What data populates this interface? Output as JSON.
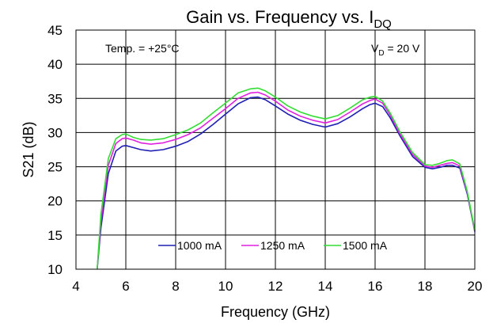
{
  "chart_data": {
    "type": "line",
    "title": {
      "main": "Gain vs. Frequency vs. I",
      "sub": "DQ"
    },
    "xlabel": "Frequency (GHz)",
    "ylabel": "S21 (dB)",
    "xlim": [
      4,
      20
    ],
    "ylim": [
      10,
      45
    ],
    "xticks": [
      "4",
      "6",
      "8",
      "10",
      "12",
      "14",
      "16",
      "18",
      "20"
    ],
    "yticks": [
      "10",
      "15",
      "20",
      "25",
      "30",
      "35",
      "40",
      "45"
    ],
    "grid": true,
    "legend_position": "bottom-center",
    "annotations": {
      "temp": "Temp. = +25°C",
      "vd_main": "V",
      "vd_sub": "D",
      "vd_rest": " = 20 V"
    },
    "series": [
      {
        "name": "1000 mA",
        "color": "#1f1fb4",
        "x": [
          4.85,
          5.0,
          5.3,
          5.6,
          5.85,
          6.0,
          6.3,
          6.6,
          7.0,
          7.5,
          8.0,
          8.5,
          9.0,
          9.5,
          10.0,
          10.5,
          11.0,
          11.3,
          11.6,
          12.0,
          12.5,
          13.0,
          13.5,
          14.0,
          14.5,
          15.0,
          15.5,
          15.8,
          16.0,
          16.3,
          16.6,
          17.0,
          17.5,
          18.0,
          18.3,
          18.6,
          18.9,
          19.1,
          19.4,
          19.7,
          20.0
        ],
        "values": [
          10,
          16,
          24,
          27.3,
          28,
          28.1,
          27.8,
          27.5,
          27.3,
          27.5,
          28,
          28.7,
          29.8,
          31.2,
          32.7,
          34.2,
          35.1,
          35.2,
          34.8,
          33.9,
          32.7,
          31.8,
          31.2,
          30.8,
          31.3,
          32.3,
          33.5,
          34.1,
          34.3,
          33.8,
          32.2,
          29.5,
          26.5,
          24.9,
          24.7,
          24.9,
          25.2,
          25.2,
          24.8,
          21,
          15.5
        ]
      },
      {
        "name": "1250 mA",
        "color": "#e020e0",
        "x": [
          4.85,
          5.0,
          5.3,
          5.6,
          5.85,
          6.0,
          6.3,
          6.6,
          7.0,
          7.5,
          8.0,
          8.5,
          9.0,
          9.5,
          10.0,
          10.5,
          11.0,
          11.3,
          11.6,
          12.0,
          12.5,
          13.0,
          13.5,
          14.0,
          14.5,
          15.0,
          15.5,
          15.8,
          16.0,
          16.3,
          16.6,
          17.0,
          17.5,
          18.0,
          18.3,
          18.6,
          18.9,
          19.1,
          19.4,
          19.7,
          20.0
        ],
        "values": [
          10,
          17,
          25.2,
          28.4,
          29.1,
          29.2,
          28.9,
          28.5,
          28.3,
          28.5,
          29,
          29.7,
          30.7,
          32.1,
          33.5,
          35,
          35.8,
          35.9,
          35.5,
          34.6,
          33.3,
          32.4,
          31.8,
          31.4,
          31.9,
          33,
          34.2,
          34.7,
          34.9,
          34.3,
          32.6,
          29.8,
          26.8,
          25.1,
          24.9,
          25.2,
          25.5,
          25.6,
          25.1,
          21.2,
          15.6
        ]
      },
      {
        "name": "1500 mA",
        "color": "#33dd33",
        "x": [
          4.85,
          5.0,
          5.3,
          5.6,
          5.85,
          6.0,
          6.3,
          6.6,
          7.0,
          7.5,
          8.0,
          8.5,
          9.0,
          9.5,
          10.0,
          10.5,
          11.0,
          11.3,
          11.6,
          12.0,
          12.5,
          13.0,
          13.5,
          14.0,
          14.5,
          15.0,
          15.5,
          15.8,
          16.0,
          16.3,
          16.6,
          17.0,
          17.5,
          18.0,
          18.3,
          18.6,
          18.9,
          19.1,
          19.4,
          19.7,
          20.0
        ],
        "values": [
          10,
          18,
          26.2,
          29.1,
          29.7,
          29.8,
          29.3,
          29,
          28.9,
          29.1,
          29.7,
          30.4,
          31.4,
          32.9,
          34.3,
          35.8,
          36.4,
          36.5,
          36.1,
          35.2,
          33.9,
          33,
          32.4,
          32,
          32.5,
          33.6,
          34.8,
          35.2,
          35.3,
          34.6,
          32.9,
          30.1,
          27.1,
          25.3,
          25.2,
          25.5,
          25.9,
          26,
          25.4,
          21.4,
          15.7
        ]
      }
    ]
  }
}
